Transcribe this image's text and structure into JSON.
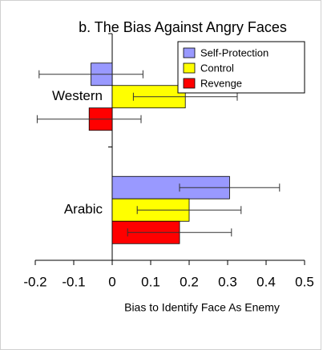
{
  "chart_data": {
    "type": "hbar",
    "title": "b. The Bias Against Angry Faces",
    "xlabel": "Bias to Identify Face As Enemy",
    "categories": [
      "Western",
      "Arabic"
    ],
    "series": [
      {
        "name": "Self-Protection",
        "color": "#9999ff",
        "values": [
          -0.055,
          0.305
        ],
        "errors": [
          0.135,
          0.13
        ]
      },
      {
        "name": "Control",
        "color": "#ffff00",
        "values": [
          0.19,
          0.2
        ],
        "errors": [
          0.135,
          0.135
        ]
      },
      {
        "name": "Revenge",
        "color": "#ff0000",
        "values": [
          -0.06,
          0.175
        ],
        "errors": [
          0.135,
          0.135
        ]
      }
    ],
    "xlim": [
      -0.2,
      0.5
    ],
    "xticks": [
      -0.2,
      -0.1,
      0,
      0.1,
      0.2,
      0.3,
      0.4,
      0.5
    ],
    "legend": "upper right"
  }
}
